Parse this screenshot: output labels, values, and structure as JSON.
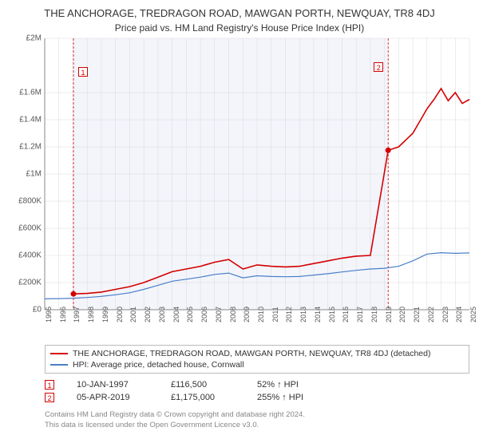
{
  "title": "THE ANCHORAGE, TREDRAGON ROAD, MAWGAN PORTH, NEWQUAY, TR8 4DJ",
  "subtitle": "Price paid vs. HM Land Registry's House Price Index (HPI)",
  "chart": {
    "type": "line",
    "y": {
      "min": 0,
      "max": 2000000,
      "ticks": [
        0,
        200000,
        400000,
        600000,
        800000,
        1000000,
        1200000,
        1400000,
        1600000,
        2000000
      ],
      "labels": [
        "£0",
        "£200K",
        "£400K",
        "£600K",
        "£800K",
        "£1M",
        "£1.2M",
        "£1.4M",
        "£1.6M",
        "£2M"
      ]
    },
    "x": {
      "min": 1995,
      "max": 2025,
      "ticks": [
        1995,
        1996,
        1997,
        1998,
        1999,
        2000,
        2001,
        2002,
        2003,
        2004,
        2005,
        2006,
        2007,
        2008,
        2009,
        2010,
        2011,
        2012,
        2013,
        2014,
        2015,
        2016,
        2017,
        2018,
        2019,
        2020,
        2021,
        2022,
        2023,
        2024,
        2025
      ]
    },
    "grid_color": "#d8d8d8",
    "axis_color": "#888",
    "background_color": "#ffffff",
    "shade_band_color": "#f3f5fb",
    "series": [
      {
        "name": "property",
        "label": "THE ANCHORAGE, TREDRAGON ROAD, MAWGAN PORTH, NEWQUAY, TR8 4DJ (detached)",
        "color": "#d40000",
        "width": 1.6,
        "points": [
          [
            1997.03,
            116500
          ],
          [
            1998,
            120000
          ],
          [
            1999,
            130000
          ],
          [
            2000,
            150000
          ],
          [
            2001,
            170000
          ],
          [
            2002,
            200000
          ],
          [
            2003,
            240000
          ],
          [
            2004,
            280000
          ],
          [
            2005,
            300000
          ],
          [
            2006,
            320000
          ],
          [
            2007,
            350000
          ],
          [
            2008,
            370000
          ],
          [
            2009,
            300000
          ],
          [
            2010,
            330000
          ],
          [
            2011,
            320000
          ],
          [
            2012,
            315000
          ],
          [
            2013,
            320000
          ],
          [
            2014,
            340000
          ],
          [
            2015,
            360000
          ],
          [
            2016,
            380000
          ],
          [
            2017,
            395000
          ],
          [
            2018,
            400000
          ],
          [
            2019.26,
            1175000
          ],
          [
            2020,
            1200000
          ],
          [
            2021,
            1300000
          ],
          [
            2022,
            1480000
          ],
          [
            2022.5,
            1550000
          ],
          [
            2023,
            1630000
          ],
          [
            2023.5,
            1540000
          ],
          [
            2024,
            1600000
          ],
          [
            2024.5,
            1520000
          ],
          [
            2025,
            1550000
          ]
        ]
      },
      {
        "name": "hpi",
        "label": "HPI: Average price, detached house, Cornwall",
        "color": "#4a7ec8",
        "width": 1.2,
        "points": [
          [
            1995,
            80000
          ],
          [
            1996,
            82000
          ],
          [
            1997,
            85000
          ],
          [
            1998,
            90000
          ],
          [
            1999,
            98000
          ],
          [
            2000,
            110000
          ],
          [
            2001,
            125000
          ],
          [
            2002,
            150000
          ],
          [
            2003,
            180000
          ],
          [
            2004,
            210000
          ],
          [
            2005,
            225000
          ],
          [
            2006,
            240000
          ],
          [
            2007,
            260000
          ],
          [
            2008,
            270000
          ],
          [
            2009,
            235000
          ],
          [
            2010,
            250000
          ],
          [
            2011,
            245000
          ],
          [
            2012,
            243000
          ],
          [
            2013,
            245000
          ],
          [
            2014,
            255000
          ],
          [
            2015,
            265000
          ],
          [
            2016,
            278000
          ],
          [
            2017,
            290000
          ],
          [
            2018,
            300000
          ],
          [
            2019,
            305000
          ],
          [
            2020,
            320000
          ],
          [
            2021,
            360000
          ],
          [
            2022,
            410000
          ],
          [
            2023,
            420000
          ],
          [
            2024,
            415000
          ],
          [
            2025,
            418000
          ]
        ]
      }
    ],
    "sale_markers": [
      {
        "n": "1",
        "year": 1997.03,
        "price": 116500,
        "color": "#d40000"
      },
      {
        "n": "2",
        "year": 2019.26,
        "price": 1175000,
        "color": "#d40000"
      }
    ]
  },
  "legend": [
    {
      "color": "#d40000",
      "label": "THE ANCHORAGE, TREDRAGON ROAD, MAWGAN PORTH, NEWQUAY, TR8 4DJ (detached)"
    },
    {
      "color": "#4a7ec8",
      "label": "HPI: Average price, detached house, Cornwall"
    }
  ],
  "sales": [
    {
      "n": "1",
      "date": "10-JAN-1997",
      "price": "£116,500",
      "hpi": "52% ↑ HPI",
      "color": "#d40000"
    },
    {
      "n": "2",
      "date": "05-APR-2019",
      "price": "£1,175,000",
      "hpi": "255% ↑ HPI",
      "color": "#d40000"
    }
  ],
  "footer": {
    "line1": "Contains HM Land Registry data © Crown copyright and database right 2024.",
    "line2": "This data is licensed under the Open Government Licence v3.0."
  }
}
